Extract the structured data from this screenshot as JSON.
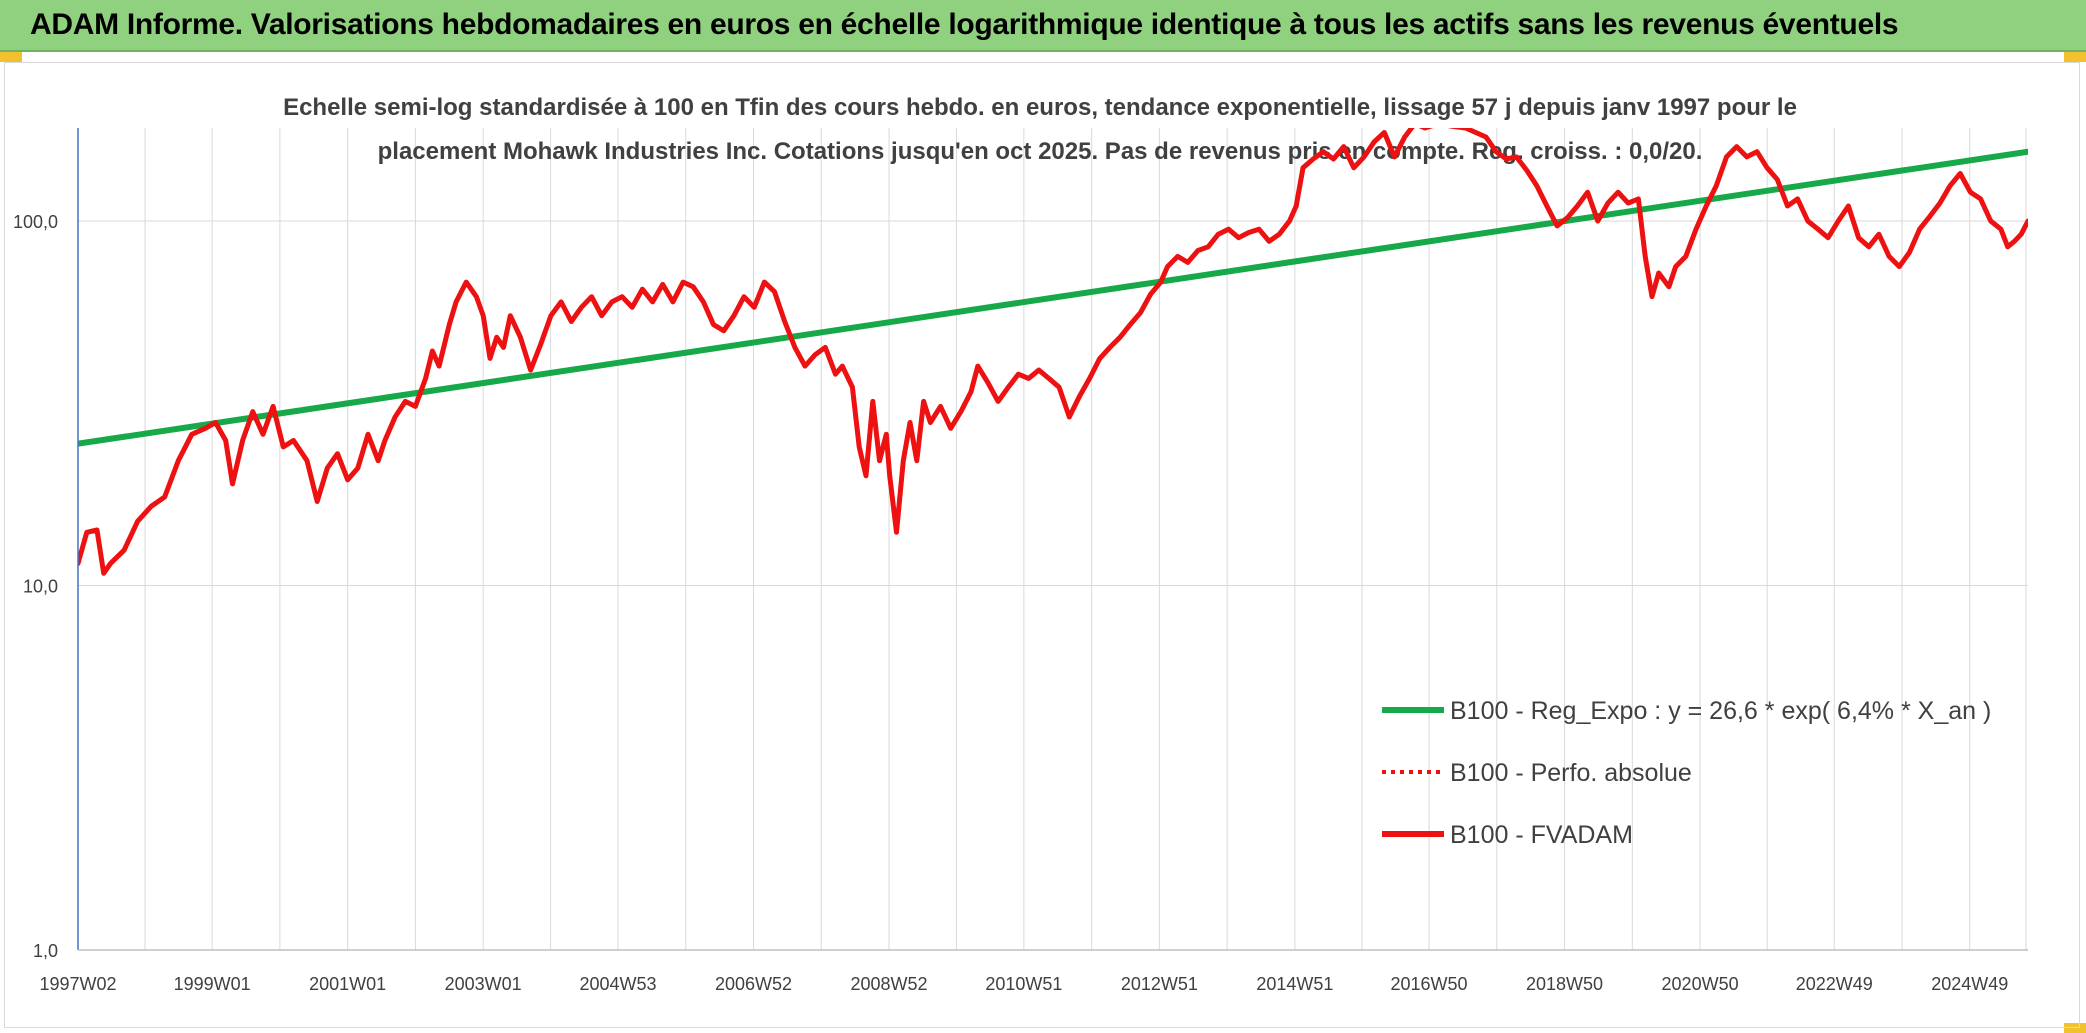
{
  "header": {
    "title": "ADAM Informe. Valorisations hebdomadaires en euros en échelle logarithmique identique à tous les actifs sans les revenus éventuels"
  },
  "colors": {
    "header_bg": "#8fd17e",
    "corner_accent": "#f2c12e",
    "trend_line": "#17a84a",
    "price_line": "#ee1111",
    "grid": "#d9d9d9",
    "axis": "#4472c4"
  },
  "chart_data": {
    "type": "line",
    "title_lines": [
      "Echelle semi-log standardisée à 100 en Tfin des cours hebdo. en euros, tendance exponentielle, lissage 57 j depuis janv 1997 pour le",
      "placement Mohawk Industries Inc. Cotations jusqu'en oct 2025. Pas de revenus pris en compte. Reg. croiss. : 0,0/20."
    ],
    "y_scale": "log",
    "ylim": [
      1,
      180
    ],
    "x_range": [
      1997.02,
      2025.8
    ],
    "y_ticks": [
      {
        "value": 1,
        "label": "1,0"
      },
      {
        "value": 10,
        "label": "10,0"
      },
      {
        "value": 100,
        "label": "100,0"
      }
    ],
    "x_ticks": [
      {
        "year": 1997.02,
        "label": "1997W02"
      },
      {
        "year": 1999.0,
        "label": "1999W01"
      },
      {
        "year": 2001.0,
        "label": "2001W01"
      },
      {
        "year": 2003.0,
        "label": "2003W01"
      },
      {
        "year": 2004.99,
        "label": "2004W53"
      },
      {
        "year": 2006.99,
        "label": "2006W52"
      },
      {
        "year": 2008.99,
        "label": "2008W52"
      },
      {
        "year": 2010.98,
        "label": "2010W51"
      },
      {
        "year": 2012.98,
        "label": "2012W51"
      },
      {
        "year": 2014.98,
        "label": "2014W51"
      },
      {
        "year": 2016.96,
        "label": "2016W50"
      },
      {
        "year": 2018.96,
        "label": "2018W50"
      },
      {
        "year": 2020.96,
        "label": "2020W50"
      },
      {
        "year": 2022.94,
        "label": "2022W49"
      },
      {
        "year": 2024.94,
        "label": "2024W49"
      }
    ],
    "grid": "vertical-and-horizontal",
    "legend_position": "lower-right",
    "series": [
      {
        "name": "B100 - Reg_Expo : y = 26,6 * exp( 6,4% *  X_an )",
        "style": "solid-green",
        "points": [
          [
            1997.02,
            24.5
          ],
          [
            2025.8,
            155
          ]
        ]
      },
      {
        "name": "B100 - Perfo. absolue",
        "style": "dotted-red",
        "points": []
      },
      {
        "name": "B100 - FVADAM",
        "style": "solid-red",
        "points": [
          [
            1997.02,
            11.5
          ],
          [
            1997.15,
            14
          ],
          [
            1997.3,
            14.2
          ],
          [
            1997.4,
            10.8
          ],
          [
            1997.5,
            11.5
          ],
          [
            1997.7,
            12.5
          ],
          [
            1997.9,
            15
          ],
          [
            1998.1,
            16.5
          ],
          [
            1998.3,
            17.5
          ],
          [
            1998.5,
            22
          ],
          [
            1998.7,
            26
          ],
          [
            1998.9,
            27
          ],
          [
            1999.05,
            28
          ],
          [
            1999.2,
            25
          ],
          [
            1999.3,
            19
          ],
          [
            1999.45,
            25
          ],
          [
            1999.6,
            30
          ],
          [
            1999.75,
            26
          ],
          [
            1999.9,
            31
          ],
          [
            2000.05,
            24
          ],
          [
            2000.2,
            25
          ],
          [
            2000.4,
            22
          ],
          [
            2000.55,
            17
          ],
          [
            2000.7,
            21
          ],
          [
            2000.85,
            23
          ],
          [
            2001.0,
            19.5
          ],
          [
            2001.15,
            21
          ],
          [
            2001.3,
            26
          ],
          [
            2001.45,
            22
          ],
          [
            2001.55,
            25
          ],
          [
            2001.7,
            29
          ],
          [
            2001.85,
            32
          ],
          [
            2002.0,
            31
          ],
          [
            2002.15,
            37
          ],
          [
            2002.25,
            44
          ],
          [
            2002.35,
            40
          ],
          [
            2002.5,
            52
          ],
          [
            2002.6,
            60
          ],
          [
            2002.75,
            68
          ],
          [
            2002.9,
            62
          ],
          [
            2003.0,
            55
          ],
          [
            2003.1,
            42
          ],
          [
            2003.2,
            48
          ],
          [
            2003.3,
            45
          ],
          [
            2003.4,
            55
          ],
          [
            2003.55,
            48
          ],
          [
            2003.7,
            39
          ],
          [
            2003.85,
            46
          ],
          [
            2004.0,
            55
          ],
          [
            2004.15,
            60
          ],
          [
            2004.3,
            53
          ],
          [
            2004.45,
            58
          ],
          [
            2004.6,
            62
          ],
          [
            2004.75,
            55
          ],
          [
            2004.9,
            60
          ],
          [
            2005.05,
            62
          ],
          [
            2005.2,
            58
          ],
          [
            2005.35,
            65
          ],
          [
            2005.5,
            60
          ],
          [
            2005.65,
            67
          ],
          [
            2005.8,
            60
          ],
          [
            2005.95,
            68
          ],
          [
            2006.1,
            66
          ],
          [
            2006.25,
            60
          ],
          [
            2006.4,
            52
          ],
          [
            2006.55,
            50
          ],
          [
            2006.7,
            55
          ],
          [
            2006.85,
            62
          ],
          [
            2007.0,
            58
          ],
          [
            2007.15,
            68
          ],
          [
            2007.3,
            64
          ],
          [
            2007.45,
            53
          ],
          [
            2007.6,
            45
          ],
          [
            2007.75,
            40
          ],
          [
            2007.9,
            43
          ],
          [
            2008.05,
            45
          ],
          [
            2008.2,
            38
          ],
          [
            2008.3,
            40
          ],
          [
            2008.45,
            35
          ],
          [
            2008.55,
            24
          ],
          [
            2008.65,
            20
          ],
          [
            2008.75,
            32
          ],
          [
            2008.85,
            22
          ],
          [
            2008.95,
            26
          ],
          [
            2009.0,
            20
          ],
          [
            2009.1,
            14
          ],
          [
            2009.2,
            22
          ],
          [
            2009.3,
            28
          ],
          [
            2009.4,
            22
          ],
          [
            2009.5,
            32
          ],
          [
            2009.6,
            28
          ],
          [
            2009.75,
            31
          ],
          [
            2009.9,
            27
          ],
          [
            2010.05,
            30
          ],
          [
            2010.2,
            34
          ],
          [
            2010.3,
            40
          ],
          [
            2010.45,
            36
          ],
          [
            2010.6,
            32
          ],
          [
            2010.75,
            35
          ],
          [
            2010.9,
            38
          ],
          [
            2011.05,
            37
          ],
          [
            2011.2,
            39
          ],
          [
            2011.35,
            37
          ],
          [
            2011.5,
            35
          ],
          [
            2011.65,
            29
          ],
          [
            2011.8,
            33
          ],
          [
            2011.95,
            37
          ],
          [
            2012.1,
            42
          ],
          [
            2012.25,
            45
          ],
          [
            2012.4,
            48
          ],
          [
            2012.55,
            52
          ],
          [
            2012.7,
            56
          ],
          [
            2012.85,
            63
          ],
          [
            2013.0,
            68
          ],
          [
            2013.1,
            75
          ],
          [
            2013.25,
            80
          ],
          [
            2013.4,
            77
          ],
          [
            2013.55,
            83
          ],
          [
            2013.7,
            85
          ],
          [
            2013.85,
            92
          ],
          [
            2014.0,
            95
          ],
          [
            2014.15,
            90
          ],
          [
            2014.3,
            93
          ],
          [
            2014.45,
            95
          ],
          [
            2014.6,
            88
          ],
          [
            2014.75,
            92
          ],
          [
            2014.9,
            100
          ],
          [
            2015.0,
            110
          ],
          [
            2015.1,
            140
          ],
          [
            2015.25,
            148
          ],
          [
            2015.4,
            155
          ],
          [
            2015.55,
            148
          ],
          [
            2015.7,
            160
          ],
          [
            2015.85,
            140
          ],
          [
            2016.0,
            150
          ],
          [
            2016.15,
            165
          ],
          [
            2016.3,
            175
          ],
          [
            2016.45,
            150
          ],
          [
            2016.6,
            170
          ],
          [
            2016.75,
            185
          ],
          [
            2016.9,
            180
          ],
          [
            2017.1,
            185
          ],
          [
            2017.3,
            182
          ],
          [
            2017.5,
            180
          ],
          [
            2017.65,
            175
          ],
          [
            2017.8,
            170
          ],
          [
            2017.95,
            155
          ],
          [
            2018.1,
            148
          ],
          [
            2018.25,
            150
          ],
          [
            2018.4,
            138
          ],
          [
            2018.55,
            125
          ],
          [
            2018.7,
            110
          ],
          [
            2018.85,
            97
          ],
          [
            2019.0,
            102
          ],
          [
            2019.15,
            110
          ],
          [
            2019.3,
            120
          ],
          [
            2019.45,
            100
          ],
          [
            2019.6,
            112
          ],
          [
            2019.75,
            120
          ],
          [
            2019.9,
            112
          ],
          [
            2020.05,
            115
          ],
          [
            2020.15,
            80
          ],
          [
            2020.25,
            62
          ],
          [
            2020.35,
            72
          ],
          [
            2020.5,
            66
          ],
          [
            2020.6,
            75
          ],
          [
            2020.75,
            80
          ],
          [
            2020.9,
            95
          ],
          [
            2021.05,
            110
          ],
          [
            2021.2,
            125
          ],
          [
            2021.35,
            150
          ],
          [
            2021.5,
            160
          ],
          [
            2021.65,
            150
          ],
          [
            2021.8,
            155
          ],
          [
            2021.95,
            140
          ],
          [
            2022.1,
            130
          ],
          [
            2022.25,
            110
          ],
          [
            2022.4,
            115
          ],
          [
            2022.55,
            100
          ],
          [
            2022.7,
            95
          ],
          [
            2022.85,
            90
          ],
          [
            2023.0,
            100
          ],
          [
            2023.15,
            110
          ],
          [
            2023.3,
            90
          ],
          [
            2023.45,
            85
          ],
          [
            2023.6,
            92
          ],
          [
            2023.75,
            80
          ],
          [
            2023.9,
            75
          ],
          [
            2024.05,
            82
          ],
          [
            2024.2,
            95
          ],
          [
            2024.35,
            103
          ],
          [
            2024.5,
            112
          ],
          [
            2024.65,
            125
          ],
          [
            2024.8,
            135
          ],
          [
            2024.95,
            120
          ],
          [
            2025.1,
            115
          ],
          [
            2025.25,
            100
          ],
          [
            2025.4,
            95
          ],
          [
            2025.5,
            85
          ],
          [
            2025.6,
            88
          ],
          [
            2025.7,
            92
          ],
          [
            2025.8,
            100
          ]
        ]
      }
    ]
  }
}
